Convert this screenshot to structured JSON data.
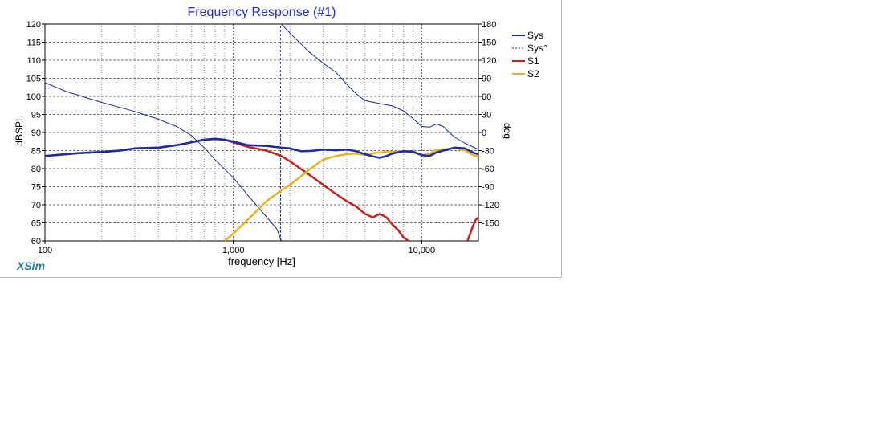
{
  "chart_data": {
    "type": "line",
    "title": "Frequency Response (#1)",
    "xlabel": "frequency [Hz]",
    "ylabel": "dBSPL",
    "y2label": "deg",
    "xscale": "log",
    "xlim": [
      100,
      20000
    ],
    "ylim": [
      60,
      120
    ],
    "y2lim": [
      -180,
      180
    ],
    "x_tick_labels": [
      {
        "value": 100,
        "label": "100"
      },
      {
        "value": 1000,
        "label": "1,000"
      },
      {
        "value": 10000,
        "label": "10,000"
      }
    ],
    "y_ticks": [
      60,
      65,
      70,
      75,
      80,
      85,
      90,
      95,
      100,
      105,
      110,
      115,
      120
    ],
    "y2_ticks": [
      -150,
      -120,
      -90,
      -60,
      -30,
      0,
      30,
      60,
      90,
      120,
      150,
      180
    ],
    "grid": true,
    "legend_position": "right",
    "series": [
      {
        "name": "Sys",
        "axis": "left",
        "color": "#1a2aa8",
        "style": "solid",
        "width": 2.5,
        "points": [
          [
            100,
            83.5
          ],
          [
            150,
            84.3
          ],
          [
            200,
            84.6
          ],
          [
            250,
            85.0
          ],
          [
            300,
            85.6
          ],
          [
            400,
            85.8
          ],
          [
            500,
            86.5
          ],
          [
            600,
            87.3
          ],
          [
            700,
            88.0
          ],
          [
            800,
            88.2
          ],
          [
            900,
            88.0
          ],
          [
            1000,
            87.5
          ],
          [
            1200,
            86.5
          ],
          [
            1500,
            86.3
          ],
          [
            1800,
            85.8
          ],
          [
            2000,
            85.6
          ],
          [
            2300,
            84.8
          ],
          [
            2600,
            84.9
          ],
          [
            3000,
            85.3
          ],
          [
            3500,
            85.1
          ],
          [
            4000,
            85.3
          ],
          [
            4500,
            84.8
          ],
          [
            5000,
            84.0
          ],
          [
            5500,
            83.4
          ],
          [
            6000,
            83.0
          ],
          [
            6500,
            83.5
          ],
          [
            7000,
            84.2
          ],
          [
            8000,
            84.8
          ],
          [
            9000,
            84.7
          ],
          [
            10000,
            83.7
          ],
          [
            11000,
            83.5
          ],
          [
            12000,
            84.5
          ],
          [
            13000,
            85.0
          ],
          [
            15000,
            85.8
          ],
          [
            17000,
            85.6
          ],
          [
            19000,
            84.3
          ],
          [
            20000,
            84.0
          ]
        ]
      },
      {
        "name": "Sys°",
        "axis": "right",
        "color": "#1a2aa8",
        "style": "solid",
        "width": 1,
        "points": [
          [
            100,
            83
          ],
          [
            130,
            68
          ],
          [
            200,
            50
          ],
          [
            300,
            35
          ],
          [
            400,
            22
          ],
          [
            500,
            10
          ],
          [
            600,
            -5
          ],
          [
            700,
            -25
          ],
          [
            800,
            -45
          ],
          [
            1000,
            -75
          ],
          [
            1200,
            -105
          ],
          [
            1500,
            -140
          ],
          [
            1700,
            -160
          ],
          [
            1800,
            -180
          ]
        ]
      },
      {
        "name": "Sys°",
        "axis": "right",
        "color": "#1a2aa8",
        "style": "solid",
        "width": 1,
        "points": [
          [
            1800,
            180
          ],
          [
            2000,
            165
          ],
          [
            2500,
            135
          ],
          [
            3000,
            115
          ],
          [
            3500,
            100
          ],
          [
            4000,
            80
          ],
          [
            4500,
            64
          ],
          [
            5000,
            53
          ],
          [
            6000,
            48
          ],
          [
            7000,
            44
          ],
          [
            8000,
            36
          ],
          [
            9000,
            23
          ],
          [
            10000,
            10
          ],
          [
            11000,
            9
          ],
          [
            12000,
            14
          ],
          [
            13000,
            10
          ],
          [
            14000,
            0
          ],
          [
            15000,
            -8
          ],
          [
            17000,
            -18
          ],
          [
            20000,
            -28
          ]
        ]
      },
      {
        "name": "Sys°",
        "axis": "right",
        "color": "#1a2aa8",
        "style": "dashed",
        "width": 1,
        "points": [
          [
            1780,
            -180
          ],
          [
            1780,
            180
          ]
        ]
      },
      {
        "name": "S1",
        "axis": "left",
        "color": "#cc1f1a",
        "style": "solid",
        "width": 2.5,
        "points": [
          [
            100,
            83.5
          ],
          [
            150,
            84.3
          ],
          [
            200,
            84.6
          ],
          [
            250,
            85.0
          ],
          [
            300,
            85.6
          ],
          [
            400,
            85.8
          ],
          [
            500,
            86.5
          ],
          [
            600,
            87.3
          ],
          [
            700,
            88.0
          ],
          [
            800,
            88.3
          ],
          [
            900,
            88.0
          ],
          [
            1000,
            87.3
          ],
          [
            1200,
            86.0
          ],
          [
            1500,
            85.0
          ],
          [
            1800,
            83.5
          ],
          [
            2000,
            82.0
          ],
          [
            2500,
            78.5
          ],
          [
            3000,
            75.5
          ],
          [
            3500,
            73.0
          ],
          [
            4000,
            71.0
          ],
          [
            4500,
            69.5
          ],
          [
            5000,
            67.5
          ],
          [
            5500,
            66.5
          ],
          [
            6000,
            67.5
          ],
          [
            6500,
            66.5
          ],
          [
            7000,
            64.5
          ],
          [
            7500,
            63.0
          ],
          [
            8000,
            61.0
          ],
          [
            8500,
            60.0
          ]
        ]
      },
      {
        "name": "S1",
        "axis": "left",
        "color": "#cc1f1a",
        "style": "solid",
        "width": 2.5,
        "points": [
          [
            17500,
            60.0
          ],
          [
            18500,
            63.5
          ],
          [
            19300,
            65.8
          ],
          [
            20000,
            66.5
          ]
        ]
      },
      {
        "name": "S2",
        "axis": "left",
        "color": "#e6b21f",
        "style": "solid",
        "width": 2.5,
        "points": [
          [
            900,
            60.0
          ],
          [
            1000,
            62.0
          ],
          [
            1200,
            66.0
          ],
          [
            1500,
            71.0
          ],
          [
            1800,
            74.0
          ],
          [
            2000,
            75.5
          ],
          [
            2500,
            79.5
          ],
          [
            3000,
            82.5
          ],
          [
            3500,
            83.5
          ],
          [
            4000,
            84.0
          ],
          [
            4500,
            84.2
          ],
          [
            5000,
            83.8
          ],
          [
            5500,
            84.2
          ],
          [
            6000,
            84.5
          ],
          [
            7000,
            84.6
          ],
          [
            8000,
            84.8
          ],
          [
            9000,
            84.5
          ],
          [
            10000,
            83.8
          ],
          [
            11000,
            84.0
          ],
          [
            12000,
            85.2
          ],
          [
            13000,
            85.3
          ],
          [
            15000,
            85.8
          ],
          [
            17000,
            85.0
          ],
          [
            19000,
            83.6
          ],
          [
            20000,
            83.2
          ]
        ]
      }
    ]
  },
  "legend": {
    "items": [
      {
        "label": "Sys",
        "color": "#1a2aa8",
        "style": "solid"
      },
      {
        "label": "Sys°",
        "color": "#1a2aa8",
        "style": "dashed"
      },
      {
        "label": "S1",
        "color": "#cc1f1a",
        "style": "solid"
      },
      {
        "label": "S2",
        "color": "#e6b21f",
        "style": "solid"
      }
    ]
  },
  "brand": "XSim"
}
